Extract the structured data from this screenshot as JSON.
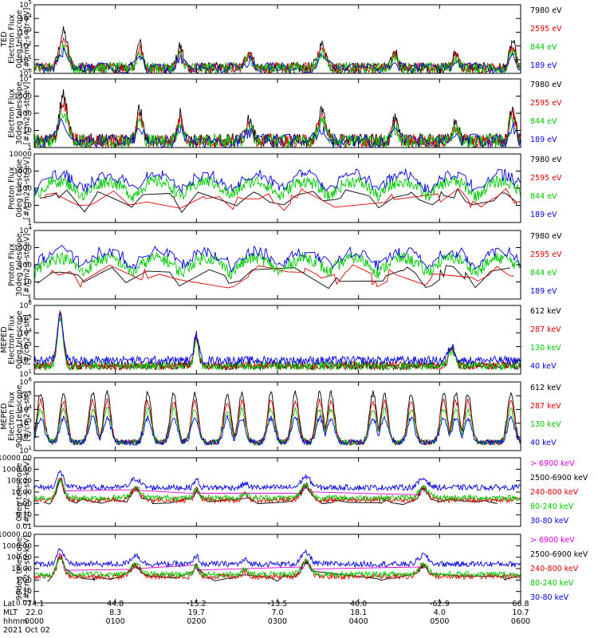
{
  "chart_data": {
    "type": "line",
    "panels": [
      {
        "id": "p1",
        "ylabel": [
          "TED",
          "Electron Flux",
          "0deg telescope",
          "[#/cm2-s-str-eV]"
        ],
        "yticks": [
          "10^0",
          "10^1",
          "10^2",
          "10^3",
          "10^4",
          "10^5"
        ],
        "ylog": [
          0,
          5
        ],
        "legend": [
          {
            "label": "7980 eV",
            "color": "#000000"
          },
          {
            "label": "2595 eV",
            "color": "#e00000"
          },
          {
            "label": "844 eV",
            "color": "#00c800"
          },
          {
            "label": "189 eV",
            "color": "#0000e0"
          }
        ]
      },
      {
        "id": "p2",
        "ylabel": [
          "Electron Flux",
          "30deg telescope",
          "[#/cm2-s-str-eV]"
        ],
        "yticks": [
          "1",
          "10",
          "100",
          "1000",
          "10^4"
        ],
        "ylog": [
          0,
          4
        ],
        "legend": [
          {
            "label": "7980 eV",
            "color": "#000000"
          },
          {
            "label": "2595 eV",
            "color": "#e00000"
          },
          {
            "label": "844 eV",
            "color": "#00c800"
          },
          {
            "label": "189 eV",
            "color": "#0000e0"
          }
        ]
      },
      {
        "id": "p3",
        "ylabel": [
          "Proton Flux",
          "0deg telescope",
          "[#/cm2-s-str-eV]"
        ],
        "yticks": [
          "1",
          "10",
          "100",
          "1000",
          "10000"
        ],
        "ylog": [
          0,
          4
        ],
        "legend": [
          {
            "label": "7980 eV",
            "color": "#000000"
          },
          {
            "label": "2595 eV",
            "color": "#e00000"
          },
          {
            "label": "844 eV",
            "color": "#00c800"
          },
          {
            "label": "189 eV",
            "color": "#0000e0"
          }
        ]
      },
      {
        "id": "p4",
        "ylabel": [
          "Proton Flux",
          "30deg telescope",
          "[#/cm2-s-str-eV]"
        ],
        "yticks": [
          "1",
          "10",
          "100",
          "1000",
          "10^4"
        ],
        "ylog": [
          0,
          4
        ],
        "legend": [
          {
            "label": "7980 eV",
            "color": "#000000"
          },
          {
            "label": "2595 eV",
            "color": "#e00000"
          },
          {
            "label": "844 eV",
            "color": "#00c800"
          },
          {
            "label": "189 eV",
            "color": "#0000e0"
          }
        ]
      },
      {
        "id": "p5",
        "ylabel": [
          "MEPED",
          "Electron Flux",
          "0deg telescope",
          "[#/cm2-s-str]"
        ],
        "yticks": [
          "10^1",
          "10^2",
          "10^3",
          "10^4",
          "10^5",
          "10^6"
        ],
        "ylog": [
          1,
          6
        ],
        "legend": [
          {
            "label": "612 keV",
            "color": "#000000"
          },
          {
            "label": "287 keV",
            "color": "#e00000"
          },
          {
            "label": "130 keV",
            "color": "#00c800"
          },
          {
            "label": "40 keV",
            "color": "#0000e0"
          }
        ]
      },
      {
        "id": "p6",
        "ylabel": [
          "MEPED",
          "Electron Flux",
          "90deg telescope",
          "[#/cm2-s-str]"
        ],
        "yticks": [
          "10^1",
          "10^2",
          "10^3",
          "10^4",
          "10^5",
          "10^6"
        ],
        "ylog": [
          1,
          6
        ],
        "legend": [
          {
            "label": "612 keV",
            "color": "#000000"
          },
          {
            "label": "287 keV",
            "color": "#e00000"
          },
          {
            "label": "130 keV",
            "color": "#00c800"
          },
          {
            "label": "40 keV",
            "color": "#0000e0"
          }
        ]
      },
      {
        "id": "p7",
        "ylabel": [
          "0deg telescope",
          "[#/cm2-s-str-keV]"
        ],
        "yticks": [
          "0.01",
          "0.10",
          "1.00",
          "10.00",
          "100.00",
          "1000.00",
          "10000.00"
        ],
        "ylog": [
          -2,
          4
        ],
        "legend": [
          {
            "label": "> 6900 keV",
            "color": "#e000e0"
          },
          {
            "label": "2500-6900 keV",
            "color": "#000000"
          },
          {
            "label": "240-800 keV",
            "color": "#e00000"
          },
          {
            "label": "80-240 keV",
            "color": "#00c800"
          },
          {
            "label": "30-80 keV",
            "color": "#0000e0"
          }
        ]
      },
      {
        "id": "p8",
        "ylabel": [
          "90deg telescope",
          "[#/cm2-s-str-keV]"
        ],
        "yticks": [
          "0.01",
          "0.10",
          "1.00",
          "10.00",
          "100.00",
          "1000.00",
          "10000.00"
        ],
        "ylog": [
          -2,
          4
        ],
        "legend": [
          {
            "label": "> 6900 keV",
            "color": "#e000e0"
          },
          {
            "label": "2500-6900 keV",
            "color": "#000000"
          },
          {
            "label": "240-800 keV",
            "color": "#e00000"
          },
          {
            "label": "80-240 keV",
            "color": "#00c800"
          },
          {
            "label": "30-80 keV",
            "color": "#0000e0"
          }
        ]
      }
    ],
    "x_axis": {
      "row_labels": [
        "Lat",
        "MLT",
        "hhmm",
        "2021 Oct 02"
      ],
      "ticks": [
        {
          "lat": "-74.1",
          "mlt": "22.0",
          "hhmm": "0000"
        },
        {
          "lat": "44.8",
          "mlt": "8.3",
          "hhmm": "0100"
        },
        {
          "lat": "-15.2",
          "mlt": "19.7",
          "hhmm": "0200"
        },
        {
          "lat": "-13.5",
          "mlt": "7.0",
          "hhmm": "0300"
        },
        {
          "lat": "40.0",
          "mlt": "18.1",
          "hhmm": "0400"
        },
        {
          "lat": "-62.9",
          "mlt": "4.0",
          "hhmm": "0500"
        },
        {
          "lat": "66.8",
          "mlt": "10.7",
          "hhmm": "0600"
        }
      ],
      "range_hours": [
        0,
        6
      ]
    }
  }
}
